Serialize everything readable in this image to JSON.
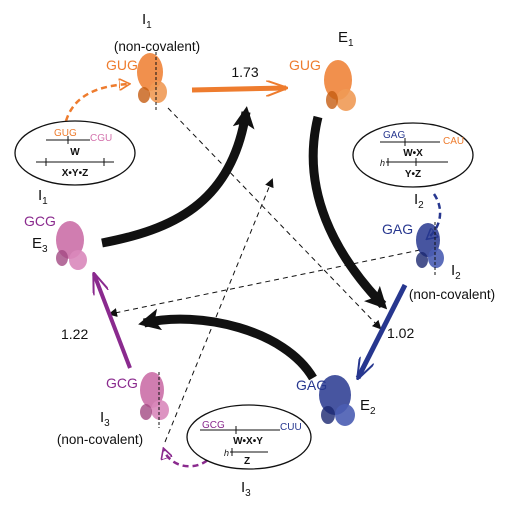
{
  "states": {
    "I1_nc": {
      "name": "I",
      "sub": "1",
      "note": "(non-covalent)",
      "codon": "GUG"
    },
    "E1": {
      "name": "E",
      "sub": "1",
      "codon": "GUG"
    },
    "I2_nc": {
      "name": "I",
      "sub": "2",
      "note": "(non-covalent)",
      "codon": "GAG"
    },
    "E2": {
      "name": "E",
      "sub": "2",
      "codon": "GAG"
    },
    "I3_nc": {
      "name": "I",
      "sub": "3",
      "note": "(non-covalent)",
      "codon": "GCG"
    },
    "E3": {
      "name": "E",
      "sub": "3",
      "codon": "GCG"
    }
  },
  "rates": {
    "r1": "1.73",
    "r2": "1.02",
    "r3": "1.22"
  },
  "schematics": {
    "I1": {
      "label": "I",
      "sub": "1",
      "codon_a": "GUG",
      "codon_b": "CGU",
      "top": "W",
      "bottom": "X•Y•Z"
    },
    "I2": {
      "label": "I",
      "sub": "2",
      "codon_a": "GAG",
      "codon_b": "CAU",
      "top": "W•X",
      "bottom": "Y•Z",
      "marker": "h"
    },
    "I3": {
      "label": "I",
      "sub": "3",
      "codon_a": "GCG",
      "codon_b": "CUU",
      "top": "W•X•Y",
      "bottom": "Z",
      "marker": "h"
    }
  },
  "colors": {
    "orange": "#ee7c2e",
    "blue": "#27378f",
    "purple": "#8a2a8e",
    "pink": "#d473ad",
    "black": "#111111"
  }
}
